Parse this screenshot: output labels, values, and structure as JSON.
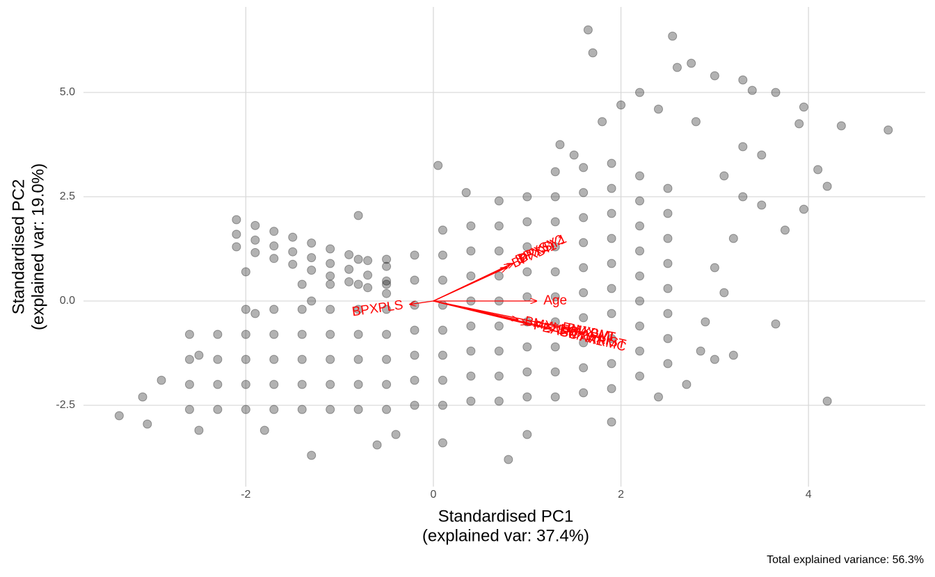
{
  "chart_data": {
    "type": "scatter",
    "xlabel": [
      "Standardised PC1",
      "(explained var: 37.4%)"
    ],
    "ylabel": [
      "Standardised PC2",
      "(explained var: 19.0%)"
    ],
    "caption": "Total explained variance: 56.3%",
    "xlim": [
      -3.731,
      5.245
    ],
    "ylim": [
      -4.45,
      7.05
    ],
    "xticks": [
      -2,
      0,
      2,
      4
    ],
    "yticks": [
      -2.5,
      {
        "value": 0,
        "label": "0.0"
      },
      2.5,
      {
        "value": 5,
        "label": "5.0"
      }
    ],
    "grid": true,
    "color": "#000000",
    "arrow_color": "#ff0000",
    "x": [
      1.65,
      2.55,
      1.7,
      2.6,
      2.75,
      3.0,
      3.3,
      3.4,
      3.65,
      3.95,
      4.35,
      4.85,
      3.9,
      4.1,
      4.2,
      3.95,
      3.75,
      3.65,
      4.2,
      3.2,
      3.0,
      2.85,
      2.4,
      0.8,
      -1.3,
      -3.35,
      -3.05,
      0.05,
      -0.8,
      0.35,
      2.0,
      1.8,
      2.2,
      1.35,
      1.5,
      2.4,
      2.8,
      3.3,
      3.5,
      3.1,
      3.3,
      3.5,
      3.2,
      3.0,
      3.1,
      2.9,
      2.7,
      1.9,
      1.0,
      0.1,
      -0.6,
      -1.8,
      -2.5,
      -3.1,
      -2.9,
      -2.5,
      -1.9,
      -2.0,
      -1.3,
      -0.4,
      -2.1,
      -1.9,
      -1.7,
      -1.5,
      -1.3,
      -1.1,
      -0.9,
      -0.7,
      -0.5,
      -2.1,
      -1.9,
      -1.7,
      -1.5,
      -1.3,
      -1.1,
      -0.9,
      -0.7,
      -0.5,
      -2.1,
      -1.9,
      -1.7,
      -1.5,
      -1.3,
      -1.1,
      -0.9,
      -0.7,
      -0.5,
      -2.6,
      -2.6,
      -2.6,
      -2.6,
      -2.3,
      -2.3,
      -2.3,
      -2.3,
      -2.0,
      -2.0,
      -2.0,
      -2.0,
      -2.0,
      -1.7,
      -1.7,
      -1.7,
      -1.7,
      -1.7,
      -1.4,
      -1.4,
      -1.4,
      -1.4,
      -1.4,
      -1.4,
      -1.1,
      -1.1,
      -1.1,
      -1.1,
      -1.1,
      -1.1,
      -0.8,
      -0.8,
      -0.8,
      -0.8,
      -0.8,
      -0.8,
      -0.8,
      -0.5,
      -0.5,
      -0.5,
      -0.5,
      -0.5,
      -0.5,
      -0.5,
      -0.2,
      -0.2,
      -0.2,
      -0.2,
      -0.2,
      -0.2,
      -0.2,
      0.1,
      0.1,
      0.1,
      0.1,
      0.1,
      0.1,
      0.1,
      0.1,
      0.4,
      0.4,
      0.4,
      0.4,
      0.4,
      0.4,
      0.4,
      0.4,
      0.7,
      0.7,
      0.7,
      0.7,
      0.7,
      0.7,
      0.7,
      0.7,
      0.7,
      1.0,
      1.0,
      1.0,
      1.0,
      1.0,
      1.0,
      1.0,
      1.0,
      1.0,
      1.3,
      1.3,
      1.3,
      1.3,
      1.3,
      1.3,
      1.3,
      1.3,
      1.3,
      1.3,
      1.6,
      1.6,
      1.6,
      1.6,
      1.6,
      1.6,
      1.6,
      1.6,
      1.6,
      1.6,
      1.9,
      1.9,
      1.9,
      1.9,
      1.9,
      1.9,
      1.9,
      1.9,
      1.9,
      1.9,
      2.2,
      2.2,
      2.2,
      2.2,
      2.2,
      2.2,
      2.2,
      2.2,
      2.2,
      2.5,
      2.5,
      2.5,
      2.5,
      2.5,
      2.5,
      2.5,
      2.5
    ],
    "values": [
      6.5,
      6.35,
      5.95,
      5.6,
      5.7,
      5.4,
      5.3,
      5.05,
      5.0,
      4.65,
      4.2,
      4.1,
      4.25,
      3.15,
      2.75,
      2.2,
      1.7,
      -0.55,
      -2.4,
      -1.3,
      -1.4,
      -1.2,
      -2.3,
      -3.8,
      -3.7,
      -2.75,
      -2.95,
      3.25,
      2.05,
      2.6,
      4.7,
      4.3,
      5.0,
      3.75,
      3.5,
      4.6,
      4.3,
      3.7,
      3.5,
      3.0,
      2.5,
      2.3,
      1.5,
      0.8,
      0.2,
      -0.5,
      -2.0,
      -2.9,
      -3.2,
      -3.4,
      -3.45,
      -3.1,
      -3.1,
      -2.3,
      -1.9,
      -1.3,
      -0.3,
      0.7,
      0.0,
      -3.2,
      1.6,
      1.46,
      1.32,
      1.18,
      1.04,
      0.9,
      0.76,
      0.62,
      0.48,
      1.95,
      1.81,
      1.67,
      1.53,
      1.39,
      1.25,
      1.11,
      0.97,
      0.83,
      1.3,
      1.16,
      1.02,
      0.88,
      0.74,
      0.6,
      0.46,
      0.32,
      0.18,
      -2.6,
      -2.0,
      -1.4,
      -0.8,
      -2.6,
      -2.0,
      -1.4,
      -0.8,
      -2.6,
      -2.0,
      -1.4,
      -0.8,
      -0.2,
      -2.6,
      -2.0,
      -1.4,
      -0.8,
      -0.2,
      -2.6,
      -2.0,
      -1.4,
      -0.8,
      -0.2,
      0.4,
      -2.6,
      -2.0,
      -1.4,
      -0.8,
      -0.2,
      0.4,
      -2.6,
      -2.0,
      -1.4,
      -0.8,
      -0.2,
      0.4,
      1.0,
      -2.6,
      -2.0,
      -1.4,
      -0.8,
      -0.2,
      0.4,
      1.0,
      -2.5,
      -1.9,
      -1.3,
      -0.7,
      -0.1,
      0.5,
      1.1,
      -2.5,
      -1.9,
      -1.3,
      -0.7,
      -0.1,
      0.5,
      1.1,
      1.7,
      -2.4,
      -1.8,
      -1.2,
      -0.6,
      0.0,
      0.6,
      1.2,
      1.8,
      -2.4,
      -1.8,
      -1.2,
      -0.6,
      0.0,
      0.6,
      1.2,
      1.8,
      2.4,
      -2.3,
      -1.7,
      -1.1,
      -0.5,
      0.1,
      0.7,
      1.3,
      1.9,
      2.5,
      -2.3,
      -1.7,
      -1.1,
      -0.5,
      0.1,
      0.7,
      1.3,
      1.9,
      2.5,
      3.1,
      -2.2,
      -1.6,
      -1.0,
      -0.4,
      0.2,
      0.8,
      1.4,
      2.0,
      2.6,
      3.2,
      -2.1,
      -1.5,
      -0.9,
      -0.3,
      0.3,
      0.9,
      1.5,
      2.1,
      2.7,
      3.3,
      -1.8,
      -1.2,
      -0.6,
      0.0,
      0.6,
      1.2,
      1.8,
      2.4,
      3.0,
      -1.5,
      -0.9,
      -0.3,
      0.3,
      0.9,
      1.5,
      2.1,
      2.7
    ],
    "arrows": [
      {
        "label": "Age",
        "x": 1.1,
        "y": 0
      },
      {
        "label": "BPXPLS",
        "x": -0.25,
        "y": -0.08
      },
      {
        "label": "BPXSY1",
        "x": 0.85,
        "y": 0.9
      },
      {
        "label": "BPXSY2",
        "x": 0.82,
        "y": 0.88
      },
      {
        "label": "BPXDI1",
        "x": 0.78,
        "y": 0.8
      },
      {
        "label": "BMXWT",
        "x": 1.35,
        "y": -0.62
      },
      {
        "label": "BMXBMI",
        "x": 1.3,
        "y": -0.6
      },
      {
        "label": "BMXWAIST",
        "x": 1.25,
        "y": -0.65
      },
      {
        "label": "BMXARMC",
        "x": 1.28,
        "y": -0.7
      },
      {
        "label": "BMXLEG",
        "x": 0.9,
        "y": -0.45
      },
      {
        "label": "PEASCTM1",
        "x": 1.0,
        "y": -0.55
      }
    ]
  }
}
